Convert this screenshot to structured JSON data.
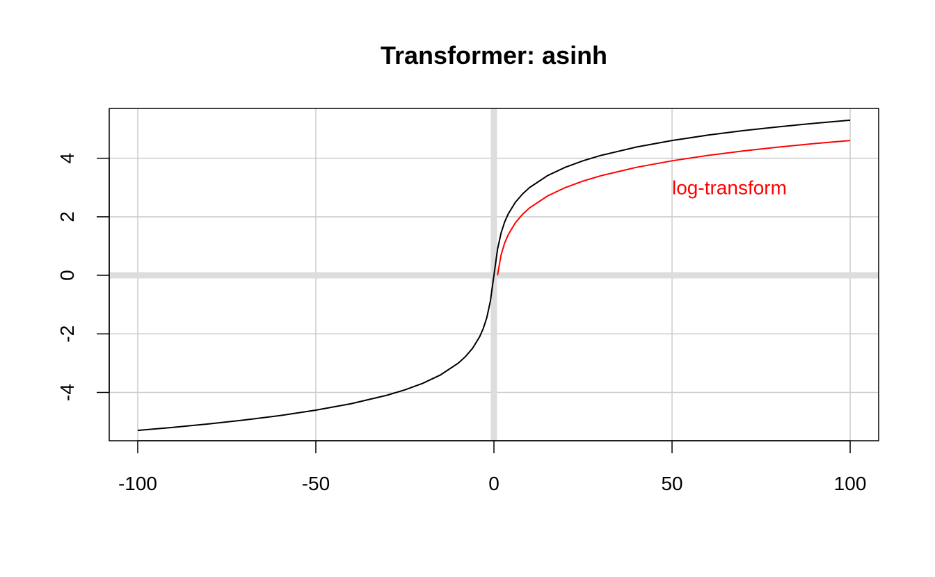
{
  "chart_data": {
    "type": "line",
    "title": "Transformer: asinh",
    "xlabel": "",
    "ylabel": "",
    "xlim": [
      -108,
      108
    ],
    "ylim": [
      -5.65,
      5.7
    ],
    "xticks": [
      -100,
      -50,
      0,
      50,
      100
    ],
    "xtick_labels": [
      "-100",
      "-50",
      "0",
      "50",
      "100"
    ],
    "yticks": [
      -4,
      -2,
      0,
      2,
      4
    ],
    "ytick_labels": [
      "-4",
      "-2",
      "0",
      "2",
      "4"
    ],
    "grid": true,
    "grid_color": "#cccccc",
    "zero_line_color": "#dddddd",
    "series": [
      {
        "color": "#000000",
        "x": [
          -100,
          -90,
          -80,
          -70,
          -60,
          -50,
          -40,
          -30,
          -25,
          -20,
          -15,
          -10,
          -8,
          -6,
          -4,
          -3,
          -2,
          -1,
          0,
          1,
          2,
          3,
          4,
          6,
          8,
          10,
          15,
          20,
          25,
          30,
          40,
          50,
          60,
          70,
          80,
          90,
          100
        ],
        "y": [
          -5.298,
          -5.193,
          -5.075,
          -4.942,
          -4.788,
          -4.605,
          -4.382,
          -4.095,
          -3.912,
          -3.689,
          -3.402,
          -2.998,
          -2.776,
          -2.492,
          -2.095,
          -1.818,
          -1.444,
          -0.881,
          0,
          0.881,
          1.444,
          1.818,
          2.095,
          2.492,
          2.776,
          2.998,
          3.402,
          3.689,
          3.912,
          4.095,
          4.382,
          4.605,
          4.788,
          4.942,
          5.075,
          5.193,
          5.298
        ]
      },
      {
        "color": "#ff0000",
        "x": [
          1,
          2,
          3,
          4,
          6,
          8,
          10,
          15,
          20,
          25,
          30,
          40,
          50,
          60,
          70,
          80,
          90,
          100
        ],
        "y": [
          0,
          0.693,
          1.099,
          1.386,
          1.792,
          2.079,
          2.303,
          2.708,
          2.996,
          3.219,
          3.401,
          3.689,
          3.912,
          4.094,
          4.248,
          4.382,
          4.5,
          4.605
        ]
      }
    ],
    "annotations": [
      {
        "text": "log-transform",
        "x": 50,
        "y": 3,
        "color": "#ff0000"
      }
    ]
  }
}
